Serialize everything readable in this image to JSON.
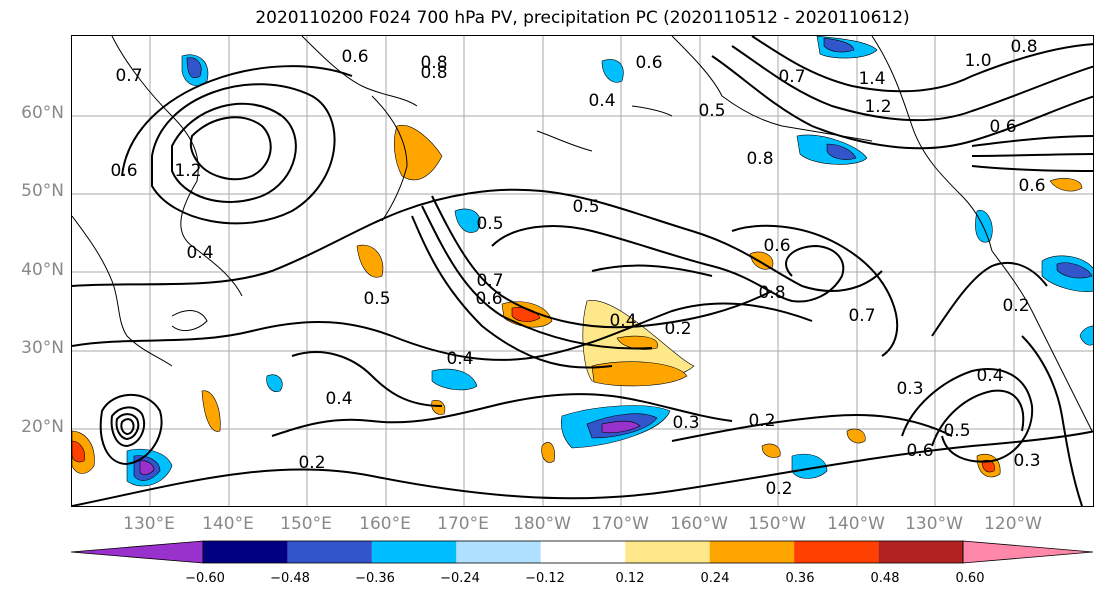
{
  "title": "2020110200 F024 700 hPa PV, precipitation PC (2020110512 - 2020110612)",
  "lat_labels": [
    "60°N",
    "50°N",
    "40°N",
    "30°N",
    "20°N"
  ],
  "lon_labels": [
    "130°E",
    "140°E",
    "150°E",
    "160°E",
    "170°E",
    "180°W",
    "170°W",
    "160°W",
    "150°W",
    "140°W",
    "130°W",
    "120°W"
  ],
  "colorbar": {
    "ticks": [
      "−0.60",
      "−0.48",
      "−0.36",
      "−0.24",
      "−0.12",
      "0.12",
      "0.24",
      "0.36",
      "0.48",
      "0.60"
    ],
    "colors": [
      "#9932cc",
      "#000080",
      "#3355cc",
      "#00bfff",
      "#b0e0ff",
      "#ffffff",
      "#ffe88a",
      "#ffa500",
      "#ff4000",
      "#b22222",
      "#ff88aa"
    ]
  },
  "contour_labels": [
    "0.6",
    "0.8",
    "0.8",
    "1.0",
    "0.8",
    "0.7",
    "0.6",
    "0.4",
    "0.5",
    "0.7",
    "1.4",
    "1.2",
    "0.8",
    "0.6",
    "1.2",
    "0.5",
    "0.5",
    "0.6",
    "0.4",
    "0.6",
    "0.5",
    "0.7",
    "0.6",
    "0.8",
    "0.6",
    "0.4",
    "0.2",
    "0.7",
    "0.2",
    "0.4",
    "0.4",
    "0.3",
    "0.2",
    "0.3",
    "0.6",
    "0.2",
    "0.5",
    "0.4",
    "0.3",
    "0.2"
  ]
}
